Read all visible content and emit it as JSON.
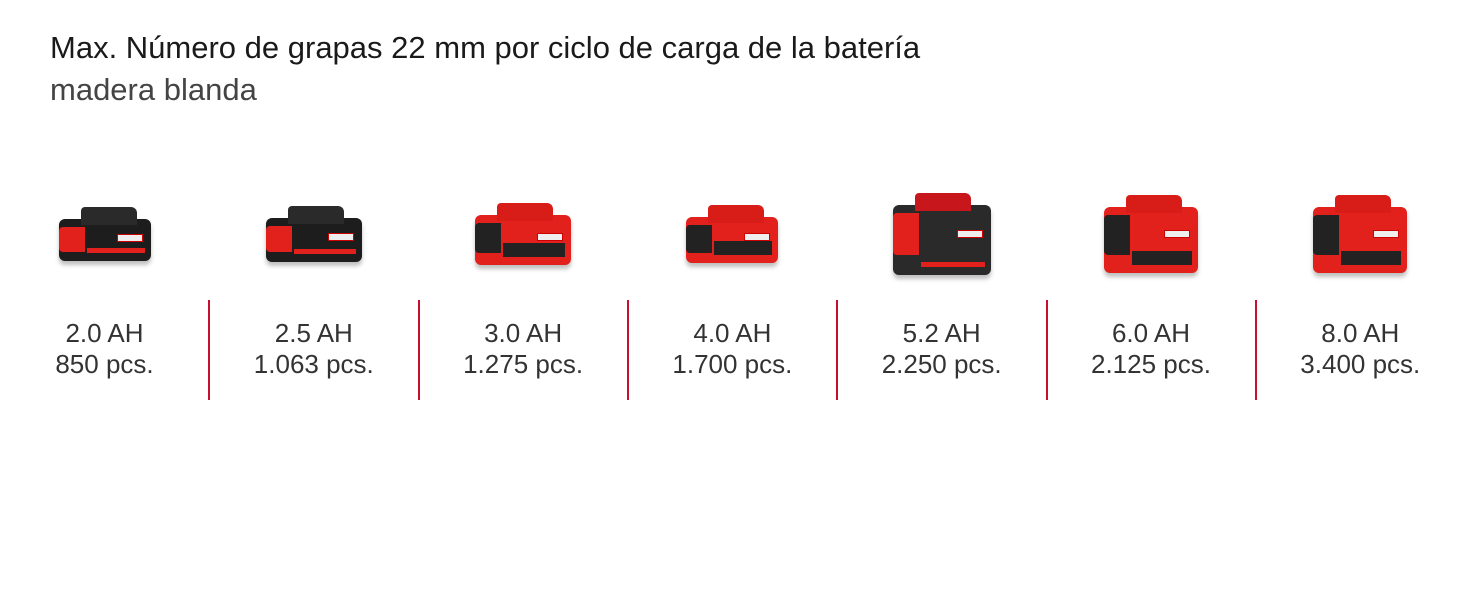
{
  "header": {
    "title": "Max. Número de grapas 22 mm por ciclo de carga de la batería",
    "subtitle": "madera blanda"
  },
  "accent_color": "#c8102e",
  "batteries": [
    {
      "capacity": "2.0 AH",
      "count": "850 pcs.",
      "icon": "battery-pack-icon"
    },
    {
      "capacity": "2.5 AH",
      "count": "1.063 pcs.",
      "icon": "battery-pack-icon"
    },
    {
      "capacity": "3.0 AH",
      "count": "1.275 pcs.",
      "icon": "battery-pack-icon"
    },
    {
      "capacity": "4.0 AH",
      "count": "1.700 pcs.",
      "icon": "battery-pack-icon"
    },
    {
      "capacity": "5.2 AH",
      "count": "2.250 pcs.",
      "icon": "battery-pack-icon"
    },
    {
      "capacity": "6.0 AH",
      "count": "2.125 pcs.",
      "icon": "battery-pack-icon"
    },
    {
      "capacity": "8.0 AH",
      "count": "3.400 pcs.",
      "icon": "battery-pack-icon"
    }
  ]
}
